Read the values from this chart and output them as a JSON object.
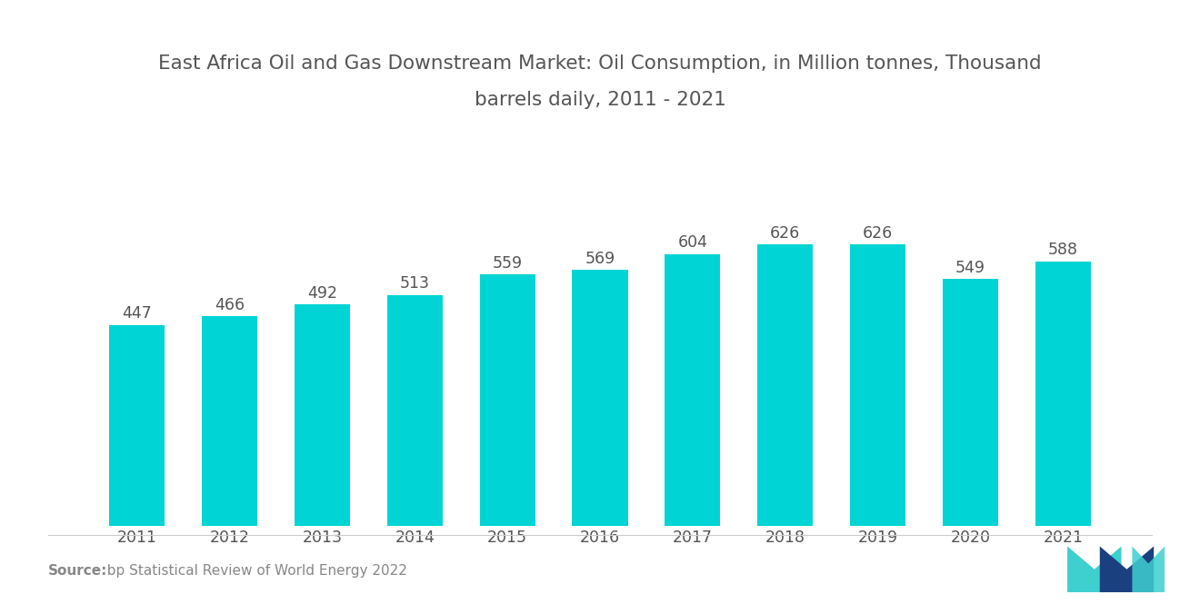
{
  "title_line1": "East Africa Oil and Gas Downstream Market: Oil Consumption, in Million tonnes, Thousand",
  "title_line2": "barrels daily, 2011 - 2021",
  "years": [
    2011,
    2012,
    2013,
    2014,
    2015,
    2016,
    2017,
    2018,
    2019,
    2020,
    2021
  ],
  "values": [
    447,
    466,
    492,
    513,
    559,
    569,
    604,
    626,
    626,
    549,
    588
  ],
  "bar_color": "#00D4D4",
  "background_color": "#FFFFFF",
  "label_color": "#555555",
  "title_color": "#555555",
  "source_bold": "Source:",
  "source_rest": "  bp Statistical Review of World Energy 2022",
  "ylim": [
    0,
    780
  ],
  "title_fontsize": 15.5,
  "label_fontsize": 12.5,
  "tick_fontsize": 12.5,
  "source_fontsize": 11,
  "bar_width": 0.6
}
